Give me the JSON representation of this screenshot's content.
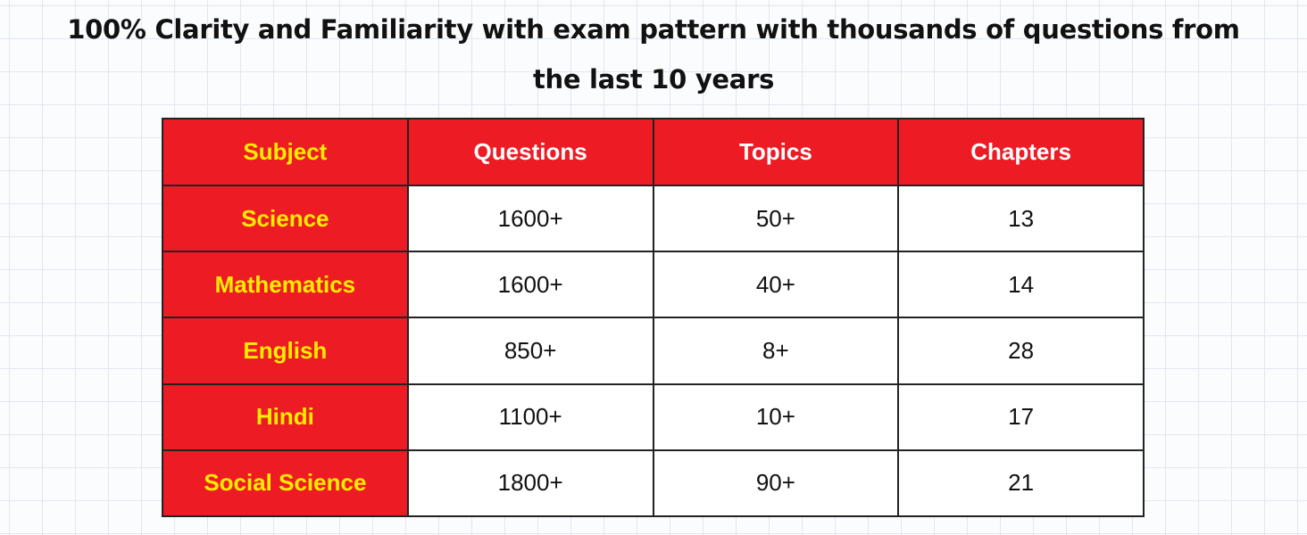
{
  "title": {
    "lines": [
      "100% Clarity and Familiarity with exam pattern with thousands of questions from",
      "the last 10 years"
    ]
  },
  "table": {
    "header": [
      "Subject",
      "Questions",
      "Topics",
      "Chapters"
    ],
    "rows": [
      [
        "Science",
        "1600+",
        "50+",
        "13"
      ],
      [
        "Mathematics",
        "1600+",
        "40+",
        "14"
      ],
      [
        "English",
        "850+",
        "8+",
        "28"
      ],
      [
        "Hindi",
        "1100+",
        "10+",
        "17"
      ],
      [
        "Social Science",
        "1800+",
        "90+",
        "21"
      ]
    ]
  }
}
